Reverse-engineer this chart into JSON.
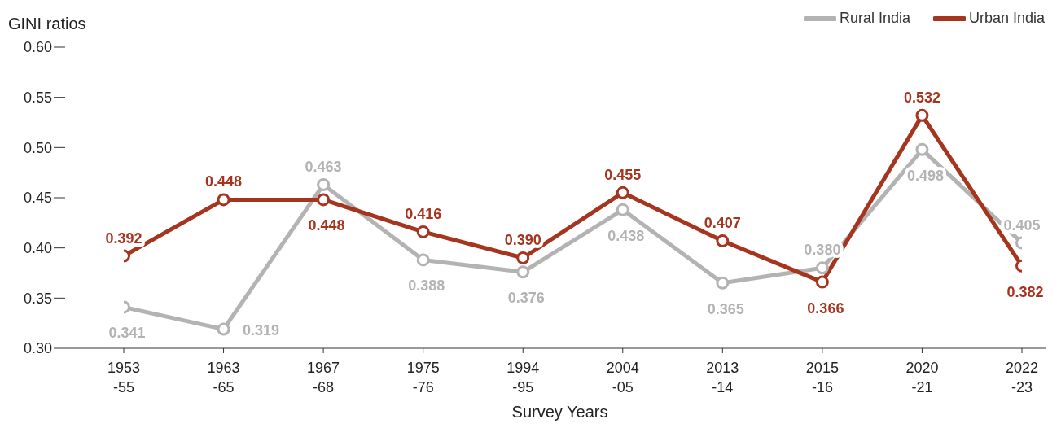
{
  "chart_data": {
    "type": "line",
    "ylabel": "GINI ratios",
    "xlabel": "Survey Years",
    "categories": [
      "1953\n-55",
      "1963\n-65",
      "1967\n-68",
      "1975\n-76",
      "1994\n-95",
      "2004\n-05",
      "2013\n-14",
      "2015\n-16",
      "2020\n-21",
      "2022\n-23"
    ],
    "series": [
      {
        "name": "Rural India",
        "color": "#b3b3b3",
        "values": [
          0.341,
          0.319,
          0.463,
          0.388,
          0.376,
          0.438,
          0.365,
          0.38,
          0.498,
          0.405
        ],
        "value_labels": [
          "0.341",
          "0.319",
          "0.463",
          "0.388",
          "0.376",
          "0.438",
          "0.365",
          "0.380",
          "0.498",
          "0.405"
        ]
      },
      {
        "name": "Urban India",
        "color": "#a5351e",
        "values": [
          0.392,
          0.448,
          0.448,
          0.416,
          0.39,
          0.455,
          0.407,
          0.366,
          0.532,
          0.382
        ],
        "value_labels": [
          "0.392",
          "0.448",
          "0.448",
          "0.416",
          "0.390",
          "0.455",
          "0.407",
          "0.366",
          "0.532",
          "0.382"
        ]
      }
    ],
    "ylim": [
      0.3,
      0.6
    ],
    "yticks": [
      {
        "value": 0.3,
        "label": "0.30"
      },
      {
        "value": 0.35,
        "label": "0.35"
      },
      {
        "value": 0.4,
        "label": "0.40"
      },
      {
        "value": 0.45,
        "label": "0.45"
      },
      {
        "value": 0.5,
        "label": "0.50"
      },
      {
        "value": 0.55,
        "label": "0.55"
      },
      {
        "value": 0.6,
        "label": "0.60"
      }
    ],
    "grid": false,
    "legend": "top right",
    "marker": "circle",
    "line_style": "solid"
  }
}
